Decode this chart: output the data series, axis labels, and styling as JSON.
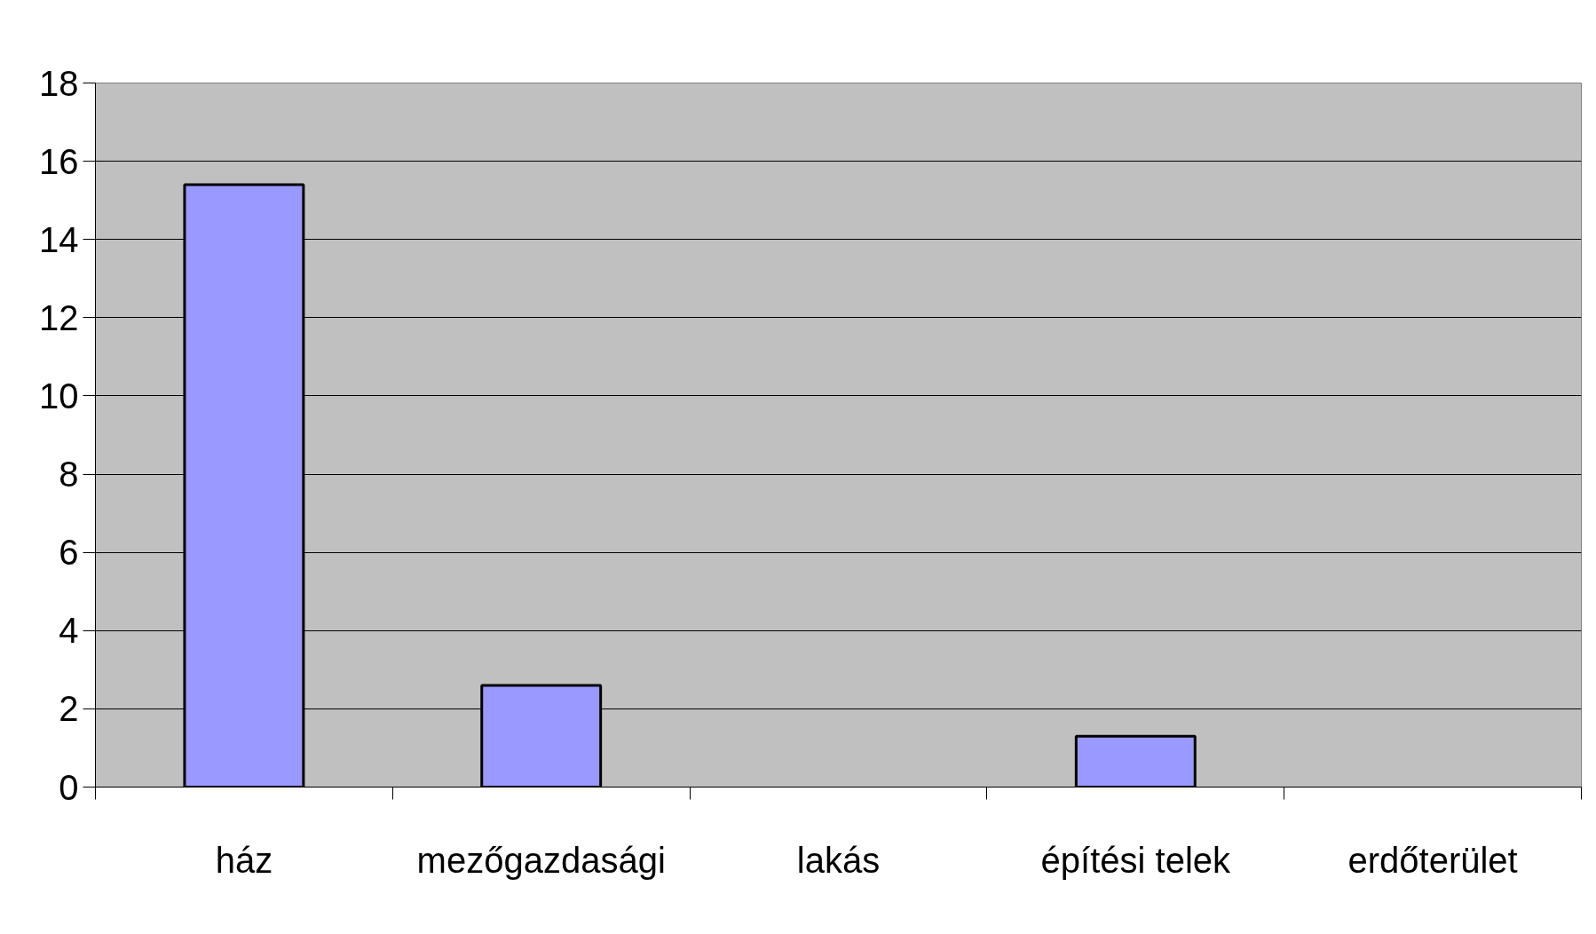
{
  "chart_data": {
    "type": "bar",
    "categories": [
      "ház",
      "mezőgazdasági",
      "lakás",
      "építési telek",
      "erdőterület"
    ],
    "values": [
      15.4,
      2.6,
      null,
      1.3,
      null
    ],
    "color": "#9999ff",
    "ylim": [
      0,
      18
    ],
    "yticks": [
      0,
      2,
      4,
      6,
      8,
      10,
      12,
      14,
      16,
      18
    ],
    "grid": "y"
  }
}
